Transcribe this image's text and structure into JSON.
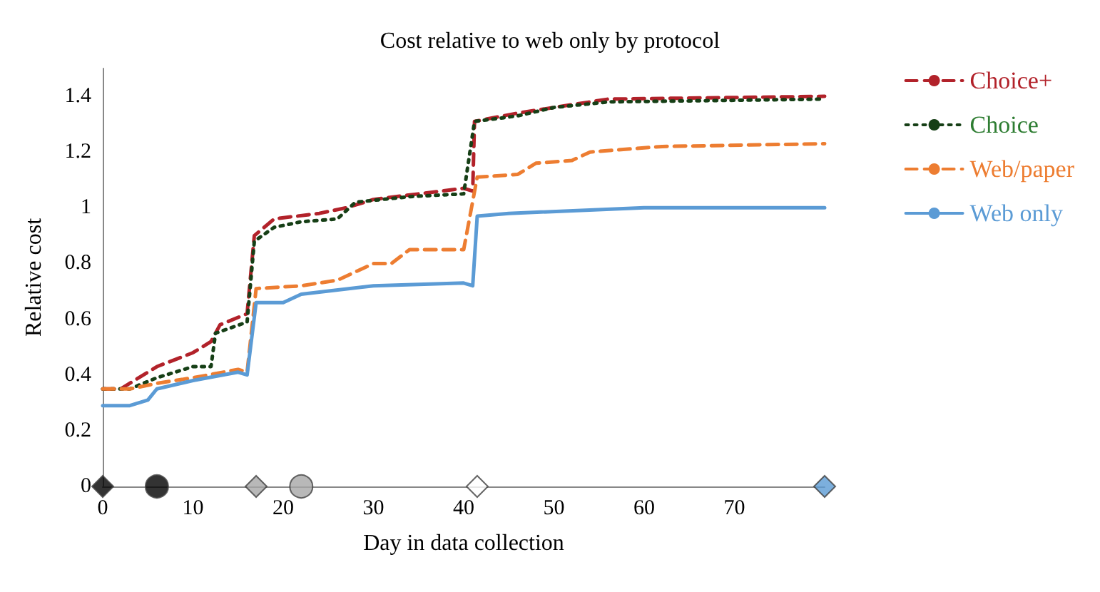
{
  "chart_data": {
    "type": "line",
    "title": "Cost relative to web only by protocol",
    "xlabel": "Day in data collection",
    "ylabel": "Relative cost",
    "xlim": [
      0,
      80
    ],
    "xticks": [
      0,
      10,
      20,
      30,
      40,
      50,
      60,
      70
    ],
    "ylim": [
      0,
      1.5
    ],
    "yticks": [
      0,
      0.2,
      0.4,
      0.6,
      0.8,
      1,
      1.2,
      1.4
    ],
    "grid": false,
    "legend": "right",
    "marker": "none",
    "series": [
      {
        "name": "Choice+",
        "color": "#b2222a",
        "line_style": "dashed",
        "x": [
          0,
          2,
          6,
          10,
          12,
          13,
          16,
          16.8,
          19,
          24,
          27,
          30,
          35,
          40,
          41,
          41.2,
          46,
          50,
          56,
          80
        ],
        "values": [
          0.35,
          0.35,
          0.43,
          0.48,
          0.52,
          0.58,
          0.62,
          0.9,
          0.96,
          0.98,
          1.0,
          1.03,
          1.05,
          1.07,
          1.06,
          1.31,
          1.34,
          1.36,
          1.39,
          1.4
        ]
      },
      {
        "name": "Choice",
        "color": "#163f16",
        "line_style": "dotted",
        "x": [
          0,
          3,
          6,
          10,
          12,
          12.5,
          16,
          16.8,
          19,
          22,
          26,
          28,
          34,
          40,
          41.2,
          46,
          50,
          56,
          80
        ],
        "values": [
          0.35,
          0.35,
          0.39,
          0.43,
          0.43,
          0.55,
          0.59,
          0.88,
          0.93,
          0.95,
          0.96,
          1.02,
          1.04,
          1.05,
          1.31,
          1.33,
          1.36,
          1.38,
          1.39
        ]
      },
      {
        "name": "Web/paper",
        "color": "#ed7d31",
        "line_style": "dashed",
        "x": [
          0,
          3,
          6,
          10,
          15,
          16,
          17,
          22,
          26,
          30,
          32,
          34,
          40,
          41.5,
          46,
          48,
          52,
          54,
          62,
          80
        ],
        "values": [
          0.35,
          0.35,
          0.37,
          0.39,
          0.42,
          0.41,
          0.71,
          0.72,
          0.74,
          0.8,
          0.8,
          0.85,
          0.85,
          1.11,
          1.12,
          1.16,
          1.17,
          1.2,
          1.22,
          1.23
        ]
      },
      {
        "name": "Web only",
        "color": "#5b9bd5",
        "line_style": "solid",
        "x": [
          0,
          3,
          5,
          6,
          10,
          15,
          16,
          17,
          20,
          22,
          30,
          40,
          41,
          41.5,
          45,
          60,
          80
        ],
        "values": [
          0.29,
          0.29,
          0.31,
          0.35,
          0.38,
          0.41,
          0.4,
          0.66,
          0.66,
          0.69,
          0.72,
          0.73,
          0.72,
          0.97,
          0.98,
          1.0,
          1.0
        ]
      },
      {
        "type": "scatter",
        "marker": "diamond",
        "x": [
          0,
          17,
          41.5,
          80
        ],
        "values": [
          0,
          0,
          0,
          0
        ],
        "colors": [
          "#000000",
          "#a6a6a6",
          "#ffffff",
          "#5b9bd5"
        ]
      },
      {
        "type": "scatter",
        "marker": "circle",
        "x": [
          6,
          22
        ],
        "values": [
          0,
          0
        ],
        "colors": [
          "#000000",
          "#a6a6a6"
        ]
      }
    ]
  }
}
